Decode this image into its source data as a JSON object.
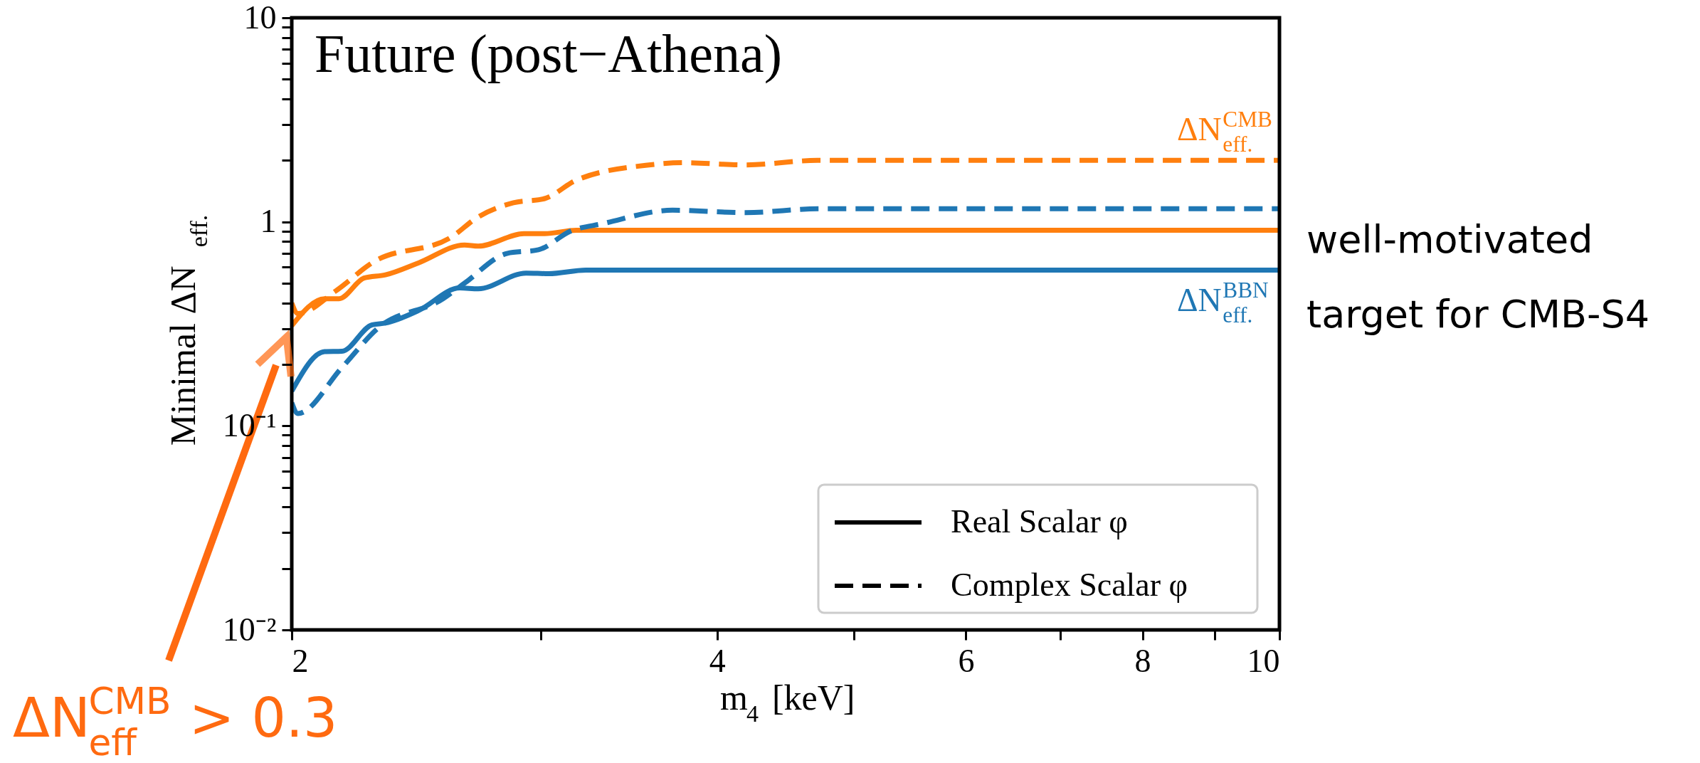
{
  "chart_data": {
    "type": "line",
    "title": "Future (post−Athena)",
    "xlabel": "m$_{4}$ [keV]",
    "ylabel": "Minimal ΔN$_{eff.}$",
    "log": "xy",
    "grid": false,
    "xlim": [
      2,
      10
    ],
    "ylim": [
      0.01,
      10
    ],
    "xticks": [
      2,
      {
        "value": 3,
        "label": null
      },
      4,
      {
        "value": 5,
        "label": null
      },
      6,
      {
        "value": 7,
        "label": null
      },
      8,
      {
        "value": 9,
        "label": null
      },
      10
    ],
    "yticks": [
      {
        "value": 0.01,
        "label": "10⁻²"
      },
      {
        "value": 0.02,
        "label": null
      },
      {
        "value": 0.03,
        "label": null
      },
      {
        "value": 0.04,
        "label": null
      },
      {
        "value": 0.05,
        "label": null
      },
      {
        "value": 0.06,
        "label": null
      },
      {
        "value": 0.07,
        "label": null
      },
      {
        "value": 0.08,
        "label": null
      },
      {
        "value": 0.09,
        "label": null
      },
      {
        "value": 0.1,
        "label": "10⁻¹"
      },
      {
        "value": 0.2,
        "label": null
      },
      {
        "value": 0.3,
        "label": null
      },
      {
        "value": 0.4,
        "label": null
      },
      {
        "value": 0.5,
        "label": null
      },
      {
        "value": 0.6,
        "label": null
      },
      {
        "value": 0.7,
        "label": null
      },
      {
        "value": 0.8,
        "label": null
      },
      {
        "value": 0.9,
        "label": null
      },
      1,
      {
        "value": 2,
        "label": null
      },
      {
        "value": 3,
        "label": null
      },
      {
        "value": 4,
        "label": null
      },
      {
        "value": 5,
        "label": null
      },
      {
        "value": 6,
        "label": null
      },
      {
        "value": 7,
        "label": null
      },
      {
        "value": 8,
        "label": null
      },
      {
        "value": 9,
        "label": null
      },
      10
    ],
    "series": [
      {
        "color": "#ff7f0e",
        "line_style": "solid",
        "x": [
          2,
          2.11,
          2.16,
          2.25,
          2.33,
          2.46,
          2.65,
          2.71,
          2.92,
          3.02,
          3.18,
          4,
          6,
          8,
          10
        ],
        "values": [
          0.31,
          0.42,
          0.42,
          0.53,
          0.55,
          0.63,
          0.77,
          0.76,
          0.875,
          0.875,
          0.91,
          0.91,
          0.91,
          0.91,
          0.91
        ]
      },
      {
        "color": "#ff7f0e",
        "line_style": "dashed",
        "x": [
          2,
          2.02,
          2.15,
          2.28,
          2.6,
          2.7,
          2.87,
          3.02,
          3.18,
          3.58,
          3.79,
          4.19,
          4.71,
          6,
          8,
          10
        ],
        "values": [
          0.4,
          0.355,
          0.46,
          0.63,
          0.85,
          1.04,
          1.24,
          1.3,
          1.6,
          1.9,
          1.95,
          1.9,
          2.0,
          2.0,
          2.0,
          2.0
        ]
      },
      {
        "color": "#1f77b4",
        "line_style": "solid",
        "x": [
          2,
          2.11,
          2.17,
          2.28,
          2.33,
          2.46,
          2.63,
          2.71,
          2.93,
          3.04,
          3.23,
          4,
          6,
          8,
          10
        ],
        "values": [
          0.148,
          0.231,
          0.232,
          0.313,
          0.319,
          0.368,
          0.474,
          0.47,
          0.561,
          0.557,
          0.58,
          0.58,
          0.58,
          0.58,
          0.58
        ]
      },
      {
        "color": "#1f77b4",
        "line_style": "dashed",
        "x": [
          2,
          2.02,
          2.17,
          2.3,
          2.56,
          2.65,
          2.84,
          2.99,
          3.15,
          3.32,
          3.72,
          4.19,
          4.73,
          6,
          8,
          10
        ],
        "values": [
          0.13,
          0.115,
          0.193,
          0.3,
          0.42,
          0.5,
          0.7,
          0.73,
          0.9,
          0.98,
          1.14,
          1.11,
          1.16,
          1.16,
          1.16,
          1.16
        ]
      }
    ],
    "annotations": [
      {
        "text": "ΔN$^{CMB}$$_{eff.}$",
        "x": 10,
        "y": 2.0
      },
      {
        "text": "ΔN$^{BBN}$$_{eff.}$",
        "x": 10,
        "y": 0.58
      },
      "well-motivated\ntarget for CMB-S4",
      "ΔN$^{CMB}$$_{eff}$ > 0.3",
      "Real Scalar φ",
      "Complex Scalar φ"
    ]
  }
}
